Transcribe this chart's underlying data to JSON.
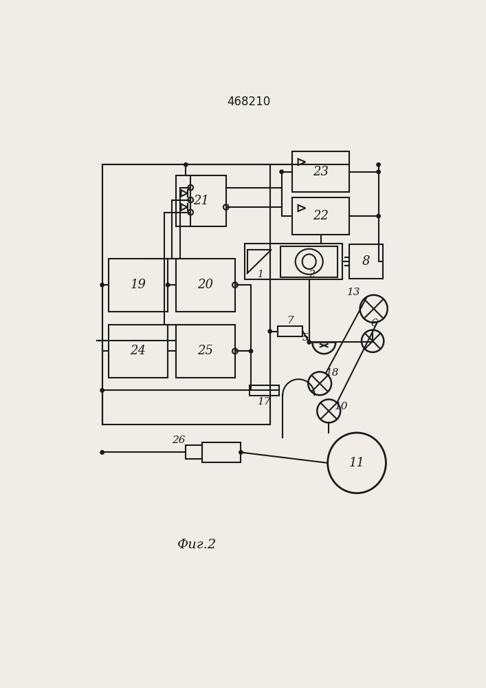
{
  "title": "468210",
  "caption": "Фиг.2",
  "bg_color": "#f0ede8",
  "line_color": "#1a1a1a",
  "lw": 1.5
}
